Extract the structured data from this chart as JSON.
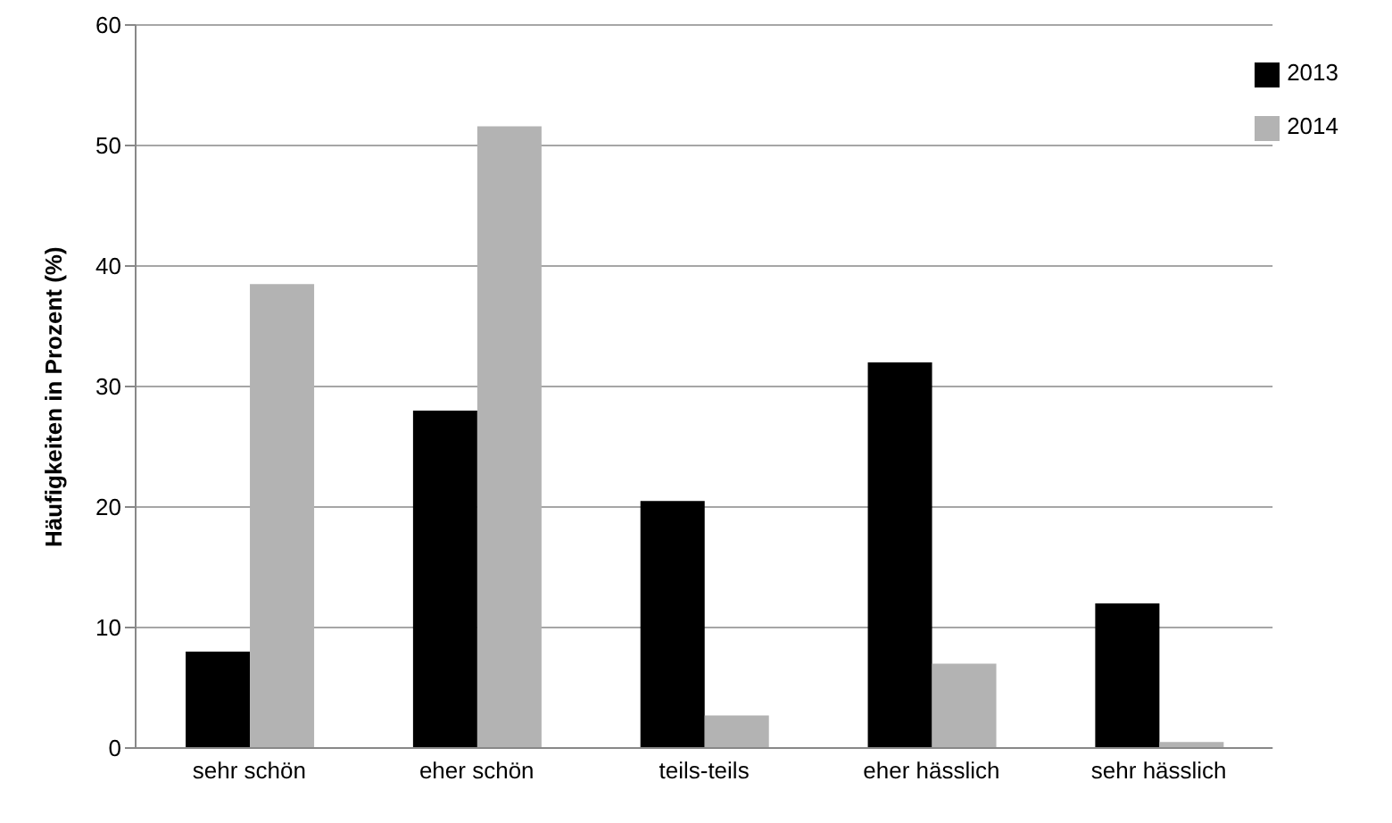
{
  "chart_data": {
    "type": "bar",
    "ylabel": "Häufigkeiten in Prozent (%)",
    "categories": [
      "sehr schön",
      "eher schön",
      "teils-teils",
      "eher hässlich",
      "sehr hässlich"
    ],
    "series": [
      {
        "name": "2013",
        "color": "#000000",
        "values": [
          8,
          28,
          20.5,
          32,
          12
        ]
      },
      {
        "name": "2014",
        "color": "#b3b3b3",
        "values": [
          38.5,
          51.6,
          2.7,
          7,
          0.5
        ]
      }
    ],
    "ylim": [
      0,
      60
    ],
    "yticks": [
      0,
      10,
      20,
      30,
      40,
      50,
      60
    ],
    "grid": "y",
    "legend": "top right"
  }
}
